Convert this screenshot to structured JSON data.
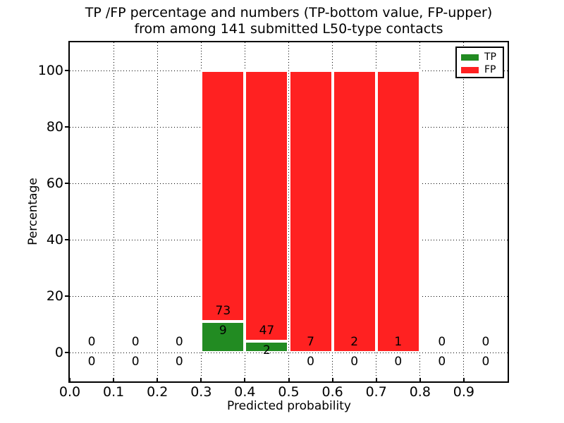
{
  "chart_data": {
    "type": "bar",
    "subtype": "stacked-percentage-histogram",
    "title_line1": "TP /FP percentage and numbers (TP-bottom value, FP-upper)",
    "title_line2": "from among 141 submitted L50-type contacts",
    "xlabel": "Predicted probability",
    "ylabel": "Percentage",
    "total_submitted": 141,
    "x_ticks": [
      "0.0",
      "0.1",
      "0.2",
      "0.3",
      "0.4",
      "0.5",
      "0.6",
      "0.7",
      "0.8",
      "0.9"
    ],
    "y_ticks": [
      "0",
      "20",
      "40",
      "60",
      "80",
      "100"
    ],
    "xlim": [
      0.0,
      1.0
    ],
    "ylim": [
      -10,
      110
    ],
    "grid": "dotted",
    "bar_edge_color": "#ffffff",
    "legend": {
      "position": "upper right",
      "entries": [
        {
          "label": "TP",
          "color": "#228B22"
        },
        {
          "label": "FP",
          "color": "#FF2121"
        }
      ]
    },
    "bins": [
      {
        "x0": 0.0,
        "x1": 0.1,
        "tp": 0,
        "fp": 0,
        "tp_pct": 0,
        "fp_pct": 0
      },
      {
        "x0": 0.1,
        "x1": 0.2,
        "tp": 0,
        "fp": 0,
        "tp_pct": 0,
        "fp_pct": 0
      },
      {
        "x0": 0.2,
        "x1": 0.3,
        "tp": 0,
        "fp": 0,
        "tp_pct": 0,
        "fp_pct": 0
      },
      {
        "x0": 0.3,
        "x1": 0.4,
        "tp": 9,
        "fp": 73,
        "tp_pct": 10.98,
        "fp_pct": 89.02
      },
      {
        "x0": 0.4,
        "x1": 0.5,
        "tp": 2,
        "fp": 47,
        "tp_pct": 4.08,
        "fp_pct": 95.92
      },
      {
        "x0": 0.5,
        "x1": 0.6,
        "tp": 0,
        "fp": 7,
        "tp_pct": 0,
        "fp_pct": 100
      },
      {
        "x0": 0.6,
        "x1": 0.7,
        "tp": 0,
        "fp": 2,
        "tp_pct": 0,
        "fp_pct": 100
      },
      {
        "x0": 0.7,
        "x1": 0.8,
        "tp": 0,
        "fp": 1,
        "tp_pct": 0,
        "fp_pct": 100
      },
      {
        "x0": 0.8,
        "x1": 0.9,
        "tp": 0,
        "fp": 0,
        "tp_pct": 0,
        "fp_pct": 0
      },
      {
        "x0": 0.9,
        "x1": 1.0,
        "tp": 0,
        "fp": 0,
        "tp_pct": 0,
        "fp_pct": 0
      }
    ],
    "series": [
      {
        "name": "TP",
        "counts": [
          0,
          0,
          0,
          9,
          2,
          0,
          0,
          0,
          0,
          0
        ],
        "pct": [
          0,
          0,
          0,
          10.98,
          4.08,
          0,
          0,
          0,
          0,
          0
        ]
      },
      {
        "name": "FP",
        "counts": [
          0,
          0,
          0,
          73,
          47,
          7,
          2,
          1,
          0,
          0
        ],
        "pct": [
          0,
          0,
          0,
          89.02,
          95.92,
          100,
          100,
          100,
          0,
          0
        ]
      }
    ]
  },
  "colors": {
    "background": "#FFFFFF",
    "frame": "#000000",
    "grid": "#000000",
    "text": "#000000",
    "tp": "#228B22",
    "fp": "#FF2121"
  }
}
